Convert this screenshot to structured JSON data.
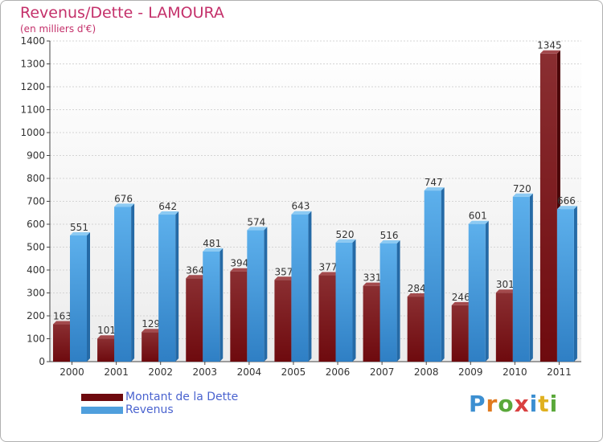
{
  "colors": {
    "dette": "#6e0a0e",
    "revenus": "#4f9fdd",
    "title": "#c4306a",
    "legend_text": "#4a63cf"
  },
  "chart_data": {
    "type": "bar",
    "title": "Revenus/Dette - LAMOURA",
    "subtitle": "(en milliers d'€)",
    "categories": [
      "2000",
      "2001",
      "2002",
      "2003",
      "2004",
      "2005",
      "2006",
      "2007",
      "2008",
      "2009",
      "2010",
      "2011"
    ],
    "series": [
      {
        "name": "Montant de la Dette",
        "values": [
          163,
          101,
          129,
          364,
          394,
          357,
          377,
          331,
          284,
          246,
          301,
          1345
        ]
      },
      {
        "name": "Revenus",
        "values": [
          551,
          676,
          642,
          481,
          574,
          643,
          520,
          516,
          747,
          601,
          720,
          666
        ]
      }
    ],
    "ylim": [
      0,
      1400
    ],
    "yticks": [
      0,
      100,
      200,
      300,
      400,
      500,
      600,
      700,
      800,
      900,
      1000,
      1100,
      1200,
      1300,
      1400
    ],
    "grid": true,
    "legend": "bottom-left"
  },
  "logo": {
    "text": "Proxiti",
    "letter_colors": [
      "#3c8fd1",
      "#e07a1f",
      "#5aa83a",
      "#d94040",
      "#3c8fd1",
      "#e0b01f",
      "#5aa83a"
    ]
  }
}
